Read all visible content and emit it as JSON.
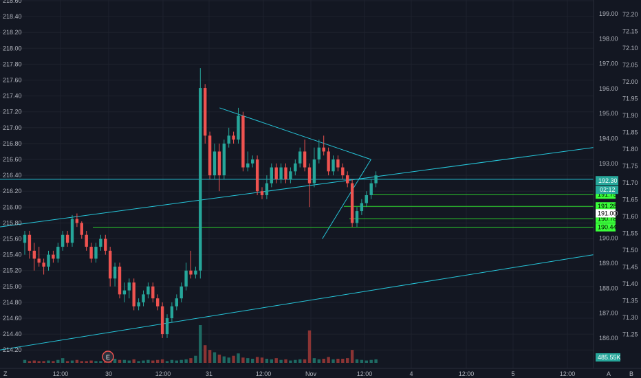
{
  "chart_data": {
    "type": "candlestick",
    "colors": {
      "background": "#131722",
      "grid": "#1e222d",
      "up": "#26a69a",
      "down": "#ef5350",
      "volume_up": "#1e6a63",
      "volume_down": "#8b3434",
      "trendline": "#26c6da",
      "level": "#2dd22d",
      "axis_text": "#b2b5be",
      "price_tag": "#26a69a",
      "level_tag": "#39ff39"
    },
    "left_axis": {
      "labels": [
        "218.60",
        "218.40",
        "218.20",
        "218.00",
        "217.80",
        "217.60",
        "217.40",
        "217.20",
        "217.00",
        "216.80",
        "216.60",
        "216.40",
        "216.20",
        "216.00",
        "215.80",
        "215.60",
        "215.40",
        "215.20",
        "215.00",
        "214.80",
        "214.60",
        "214.40",
        "214.20"
      ],
      "range": [
        214.1,
        218.65
      ]
    },
    "right_axis": {
      "labels": [
        "199.00",
        "198.00",
        "197.00",
        "196.00",
        "195.00",
        "194.00",
        "193.00",
        "192.00",
        "191.00",
        "190.00",
        "189.00",
        "188.00",
        "187.00",
        "186.00"
      ],
      "range": [
        185.2,
        199.4
      ],
      "current_price": "192.30",
      "countdown": "02:12",
      "volume_label": "485.55K",
      "price_levels": [
        {
          "label": "191.75",
          "value": 191.75
        },
        {
          "label": "191.28",
          "value": 191.28
        },
        {
          "label": "190.78",
          "value": 190.78
        },
        {
          "label": "190.44",
          "value": 190.44
        }
      ],
      "hidden_level": "191.00"
    },
    "far_right_axis": {
      "labels": [
        "72.20",
        "72.15",
        "72.10",
        "72.05",
        "72.00",
        "71.95",
        "71.90",
        "71.85",
        "71.80",
        "71.75",
        "71.70",
        "71.65",
        "71.60",
        "71.55",
        "71.50",
        "71.45",
        "71.40",
        "71.35",
        "71.30",
        "71.25"
      ],
      "range": [
        71.2,
        72.23
      ]
    },
    "x_axis": {
      "labels": [
        "12:00",
        "30",
        "12:00",
        "31",
        "12:00",
        "Nov",
        "12:00",
        "4",
        "12:00",
        "5",
        "12:00"
      ],
      "extra": [
        "Z",
        "A",
        "B"
      ]
    },
    "candles": [
      [
        215.55,
        215.65,
        215.4,
        215.7
      ],
      [
        215.65,
        215.45,
        215.35,
        215.7
      ],
      [
        215.45,
        215.35,
        215.2,
        215.55
      ],
      [
        215.35,
        215.3,
        215.25,
        215.5
      ],
      [
        215.3,
        215.25,
        215.15,
        215.35
      ],
      [
        215.25,
        215.4,
        215.2,
        215.45
      ],
      [
        215.4,
        215.35,
        215.3,
        215.45
      ],
      [
        215.35,
        215.5,
        215.3,
        215.55
      ],
      [
        215.5,
        215.65,
        215.45,
        215.7
      ],
      [
        215.65,
        215.55,
        215.5,
        215.7
      ],
      [
        215.55,
        215.85,
        215.5,
        215.9
      ],
      [
        215.85,
        215.8,
        215.75,
        215.92
      ],
      [
        215.8,
        215.65,
        215.6,
        215.82
      ],
      [
        215.65,
        215.5,
        215.45,
        215.7
      ],
      [
        215.5,
        215.35,
        215.3,
        215.55
      ],
      [
        215.35,
        215.5,
        215.3,
        215.55
      ],
      [
        215.5,
        215.6,
        215.45,
        215.65
      ],
      [
        215.6,
        215.45,
        215.4,
        215.65
      ],
      [
        215.45,
        215.1,
        215.0,
        215.5
      ],
      [
        215.1,
        215.25,
        215.0,
        215.3
      ],
      [
        215.25,
        214.9,
        214.85,
        215.3
      ],
      [
        214.9,
        214.95,
        214.8,
        215.05
      ],
      [
        214.95,
        215.05,
        214.85,
        215.1
      ],
      [
        215.05,
        214.75,
        214.7,
        215.1
      ],
      [
        214.75,
        214.8,
        214.7,
        214.85
      ],
      [
        214.8,
        214.9,
        214.75,
        214.95
      ],
      [
        214.9,
        215.0,
        214.85,
        215.05
      ],
      [
        215.0,
        214.85,
        214.8,
        215.05
      ],
      [
        214.85,
        214.75,
        214.7,
        214.9
      ],
      [
        214.75,
        214.4,
        214.35,
        214.8
      ],
      [
        214.4,
        214.6,
        214.35,
        214.65
      ],
      [
        214.6,
        214.75,
        214.55,
        214.8
      ],
      [
        214.75,
        214.85,
        214.7,
        214.9
      ],
      [
        214.85,
        215.0,
        214.8,
        215.05
      ],
      [
        215.0,
        215.2,
        214.95,
        215.3
      ],
      [
        215.2,
        215.15,
        215.1,
        215.45
      ],
      [
        215.15,
        215.2,
        215.1,
        215.25
      ],
      [
        215.2,
        217.5,
        215.1,
        217.75
      ],
      [
        217.5,
        216.9,
        216.8,
        217.55
      ],
      [
        216.9,
        216.4,
        216.35,
        216.95
      ],
      [
        216.4,
        216.7,
        216.35,
        216.8
      ],
      [
        216.7,
        216.4,
        216.2,
        216.8
      ],
      [
        216.4,
        216.8,
        216.35,
        216.85
      ],
      [
        216.8,
        216.9,
        216.75,
        217.0
      ],
      [
        216.9,
        216.85,
        216.8,
        216.95
      ],
      [
        216.85,
        217.15,
        216.8,
        217.25
      ],
      [
        217.15,
        216.5,
        216.45,
        217.2
      ],
      [
        216.5,
        216.55,
        216.45,
        216.7
      ],
      [
        216.55,
        216.6,
        216.5,
        216.65
      ],
      [
        216.6,
        216.2,
        216.15,
        216.65
      ],
      [
        216.2,
        216.15,
        216.1,
        216.25
      ],
      [
        216.15,
        216.3,
        216.1,
        216.4
      ],
      [
        216.3,
        216.5,
        216.25,
        216.55
      ],
      [
        216.5,
        216.35,
        216.3,
        216.55
      ],
      [
        216.35,
        216.5,
        216.3,
        216.55
      ],
      [
        216.5,
        216.35,
        216.3,
        216.55
      ],
      [
        216.35,
        216.45,
        216.3,
        216.5
      ],
      [
        216.45,
        216.55,
        216.4,
        216.6
      ],
      [
        216.55,
        216.7,
        216.5,
        216.75
      ],
      [
        216.7,
        216.5,
        216.45,
        216.85
      ],
      [
        216.5,
        216.3,
        216.0,
        216.55
      ],
      [
        216.3,
        216.6,
        216.25,
        216.75
      ],
      [
        216.6,
        216.75,
        216.55,
        216.85
      ],
      [
        216.75,
        216.7,
        216.65,
        216.9
      ],
      [
        216.7,
        216.45,
        216.4,
        216.75
      ],
      [
        216.45,
        216.6,
        216.4,
        216.65
      ],
      [
        216.6,
        216.5,
        216.45,
        216.65
      ],
      [
        216.5,
        216.4,
        216.35,
        216.55
      ],
      [
        216.4,
        216.3,
        216.25,
        216.45
      ],
      [
        216.3,
        215.8,
        215.75,
        216.35
      ],
      [
        215.8,
        215.95,
        215.75,
        216.0
      ],
      [
        215.95,
        216.05,
        215.9,
        216.1
      ],
      [
        216.05,
        216.15,
        216.0,
        216.2
      ],
      [
        216.15,
        216.3,
        216.1,
        216.35
      ],
      [
        216.3,
        216.4,
        216.25,
        216.45
      ]
    ],
    "volumes": [
      5,
      3,
      4,
      3,
      3,
      4,
      3,
      5,
      8,
      3,
      4,
      5,
      3,
      3,
      4,
      3,
      3,
      4,
      10,
      7,
      5,
      5,
      4,
      6,
      3,
      4,
      5,
      4,
      5,
      6,
      3,
      5,
      4,
      5,
      6,
      8,
      12,
      64,
      30,
      22,
      18,
      14,
      11,
      9,
      12,
      16,
      9,
      8,
      7,
      10,
      9,
      7,
      6,
      8,
      5,
      6,
      4,
      5,
      6,
      6,
      55,
      8,
      6,
      7,
      10,
      6,
      7,
      7,
      8,
      22,
      6,
      5,
      4,
      5,
      6
    ],
    "trendlines": [
      {
        "from": [
          0,
          215.75
        ],
        "to": [
          100,
          216.75
        ]
      },
      {
        "from": [
          0,
          214.2
        ],
        "to": [
          100,
          215.4
        ]
      },
      {
        "from": [
          37.0,
          217.25
        ],
        "to": [
          62.5,
          216.6
        ]
      },
      {
        "from": [
          54.3,
          215.6
        ],
        "to": [
          62.5,
          216.6
        ]
      },
      {
        "from": [
          0,
          216.35
        ],
        "to": [
          100,
          216.35
        ]
      }
    ]
  }
}
